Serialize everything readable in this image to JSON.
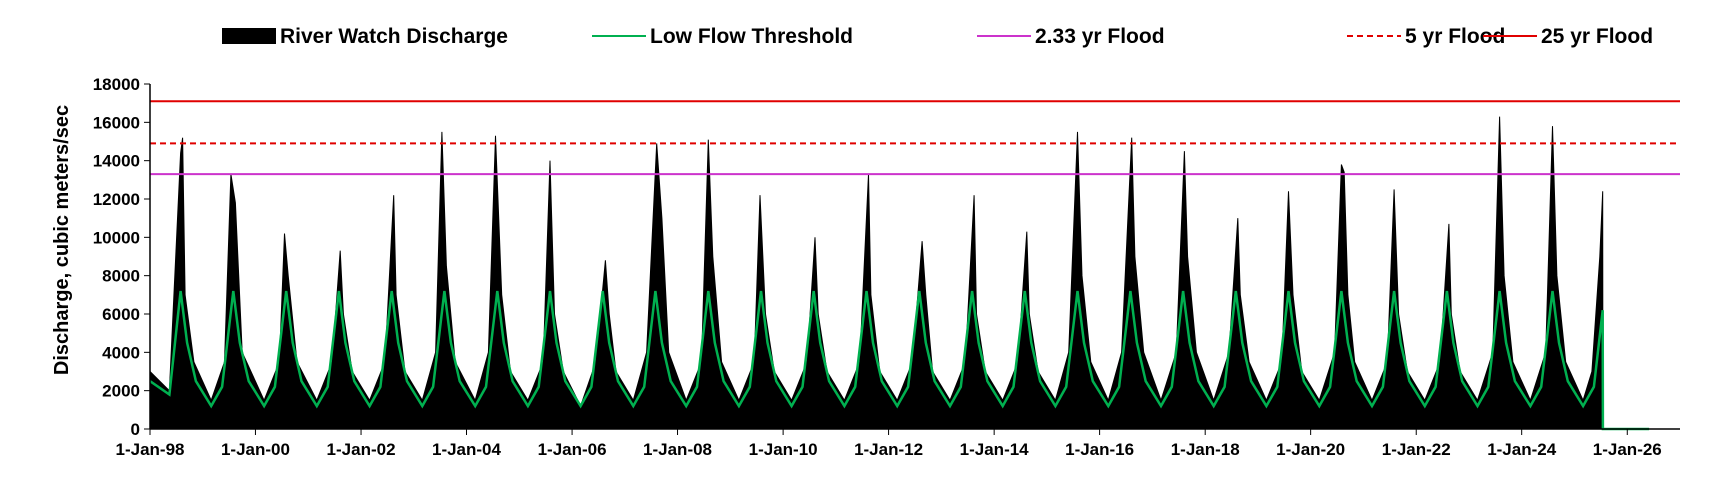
{
  "chart_data": {
    "type": "area",
    "title": "",
    "xlabel": "",
    "ylabel": "Discharge, cubic meters/sec",
    "ylim": [
      0,
      18000
    ],
    "yticks": [
      0,
      2000,
      4000,
      6000,
      8000,
      10000,
      12000,
      14000,
      16000,
      18000
    ],
    "ytick_labels": [
      "0",
      "2000",
      "4000",
      "6000",
      "8000",
      "10000",
      "12000",
      "14000",
      "16000",
      "18000"
    ],
    "xlim": [
      "1998-01-01",
      "2027-01-01"
    ],
    "xtick_labels": [
      "1-Jan-98",
      "1-Jan-00",
      "1-Jan-02",
      "1-Jan-04",
      "1-Jan-06",
      "1-Jan-08",
      "1-Jan-10",
      "1-Jan-12",
      "1-Jan-14",
      "1-Jan-16",
      "1-Jan-18",
      "1-Jan-20",
      "1-Jan-22",
      "1-Jan-24",
      "1-Jan-26"
    ],
    "xtick_dates": [
      "1998-01-01",
      "2000-01-01",
      "2002-01-01",
      "2004-01-01",
      "2006-01-01",
      "2008-01-01",
      "2010-01-01",
      "2012-01-01",
      "2014-01-01",
      "2016-01-01",
      "2018-01-01",
      "2020-01-01",
      "2022-01-01",
      "2024-01-01",
      "2026-01-01"
    ],
    "legend_position": "top",
    "grid": false,
    "series": [
      {
        "name": "River Watch Discharge",
        "style": "filled-area",
        "color": "#000000",
        "x": [
          "1998-01-01",
          "1998-05-15",
          "1998-08-01",
          "1998-08-15",
          "1998-09-01",
          "1998-11-01",
          "1999-03-01",
          "1999-06-01",
          "1999-07-15",
          "1999-08-15",
          "1999-10-01",
          "2000-03-01",
          "2000-06-15",
          "2000-07-20",
          "2000-08-15",
          "2000-10-15",
          "2001-03-01",
          "2001-06-15",
          "2001-08-10",
          "2001-09-01",
          "2001-11-01",
          "2002-03-01",
          "2002-06-15",
          "2002-08-15",
          "2002-09-01",
          "2002-11-01",
          "2003-03-01",
          "2003-06-01",
          "2003-07-15",
          "2003-08-15",
          "2003-10-15",
          "2004-03-01",
          "2004-06-01",
          "2004-07-20",
          "2004-09-01",
          "2004-11-01",
          "2005-03-01",
          "2005-06-15",
          "2005-08-01",
          "2005-09-01",
          "2005-11-01",
          "2006-03-01",
          "2006-06-15",
          "2006-08-20",
          "2006-09-15",
          "2006-11-01",
          "2007-03-01",
          "2007-06-01",
          "2007-08-10",
          "2007-09-15",
          "2007-11-01",
          "2008-03-01",
          "2008-06-15",
          "2008-08-01",
          "2008-09-01",
          "2008-11-01",
          "2009-03-01",
          "2009-06-15",
          "2009-07-25",
          "2009-09-01",
          "2009-11-01",
          "2010-03-01",
          "2010-06-15",
          "2010-08-10",
          "2010-09-01",
          "2010-11-01",
          "2011-03-01",
          "2011-06-15",
          "2011-08-15",
          "2011-09-01",
          "2011-11-01",
          "2012-03-01",
          "2012-06-15",
          "2012-08-20",
          "2012-09-15",
          "2012-11-01",
          "2013-03-01",
          "2013-06-15",
          "2013-08-15",
          "2013-09-01",
          "2013-11-01",
          "2014-03-01",
          "2014-06-15",
          "2014-08-15",
          "2014-09-01",
          "2014-11-01",
          "2015-03-01",
          "2015-06-01",
          "2015-08-01",
          "2015-09-01",
          "2015-11-01",
          "2016-03-01",
          "2016-06-01",
          "2016-08-10",
          "2016-09-01",
          "2016-11-01",
          "2017-03-01",
          "2017-06-15",
          "2017-08-10",
          "2017-09-01",
          "2017-11-01",
          "2018-03-01",
          "2018-06-15",
          "2018-08-15",
          "2018-09-01",
          "2018-11-01",
          "2019-03-01",
          "2019-06-15",
          "2019-08-01",
          "2019-09-01",
          "2019-11-01",
          "2020-03-01",
          "2020-06-15",
          "2020-08-01",
          "2020-08-20",
          "2020-09-15",
          "2020-11-01",
          "2021-03-01",
          "2021-06-15",
          "2021-08-01",
          "2021-09-01",
          "2021-11-01",
          "2022-03-01",
          "2022-06-15",
          "2022-08-15",
          "2022-09-01",
          "2022-11-01",
          "2023-03-01",
          "2023-06-15",
          "2023-08-01",
          "2023-09-01",
          "2023-11-01",
          "2024-03-01",
          "2024-06-15",
          "2024-08-01",
          "2024-09-01",
          "2024-11-01",
          "2025-03-01",
          "2025-05-01",
          "2025-06-25",
          "2025-07-15",
          "2025-07-16",
          "2026-06-01"
        ],
        "values": [
          3000,
          2000,
          14400,
          15200,
          7000,
          3500,
          1500,
          3500,
          13300,
          11800,
          4000,
          1500,
          3500,
          10200,
          8000,
          3500,
          1500,
          3500,
          9300,
          6000,
          3000,
          1500,
          3500,
          12200,
          7000,
          3000,
          1500,
          4000,
          15500,
          8500,
          3500,
          1500,
          4000,
          15300,
          7000,
          3000,
          1500,
          3500,
          14000,
          6000,
          3000,
          1200,
          3500,
          8800,
          6000,
          3000,
          1500,
          4000,
          14900,
          11000,
          4000,
          1500,
          3500,
          15100,
          9000,
          3500,
          1500,
          3500,
          12200,
          6000,
          3000,
          1500,
          3500,
          10000,
          6000,
          3000,
          1500,
          3500,
          13300,
          7000,
          3000,
          1500,
          3500,
          9800,
          7000,
          3000,
          1500,
          3500,
          12200,
          6000,
          3000,
          1500,
          3500,
          10300,
          6000,
          3000,
          1500,
          4000,
          15500,
          8000,
          3500,
          1500,
          4000,
          15200,
          9000,
          4000,
          1500,
          4000,
          14500,
          9000,
          4000,
          1500,
          4000,
          11000,
          7000,
          3500,
          1500,
          3500,
          12400,
          7000,
          3000,
          1500,
          4000,
          13800,
          13400,
          7000,
          3500,
          1500,
          3500,
          12500,
          6000,
          3000,
          1500,
          3500,
          10700,
          6000,
          3000,
          1500,
          4000,
          16300,
          8000,
          3500,
          1500,
          4000,
          15800,
          8000,
          3500,
          1500,
          3000,
          9000,
          12400,
          0,
          0
        ]
      },
      {
        "name": "Low Flow Threshold",
        "style": "line",
        "color": "#00b050",
        "x": [
          "1998-01-01",
          "1998-05-15",
          "1998-08-01",
          "1998-09-15",
          "1998-11-15",
          "1999-03-01",
          "1999-05-15",
          "1999-08-01",
          "1999-09-15",
          "1999-11-15",
          "2000-03-01",
          "2000-05-15",
          "2000-08-01",
          "2000-09-15",
          "2000-11-15",
          "2001-03-01",
          "2001-05-15",
          "2001-08-01",
          "2001-09-15",
          "2001-11-15",
          "2002-03-01",
          "2002-05-15",
          "2002-08-01",
          "2002-09-15",
          "2002-11-15",
          "2003-03-01",
          "2003-05-15",
          "2003-08-01",
          "2003-09-15",
          "2003-11-15",
          "2004-03-01",
          "2004-05-15",
          "2004-08-01",
          "2004-09-15",
          "2004-11-15",
          "2005-03-01",
          "2005-05-15",
          "2005-08-01",
          "2005-09-15",
          "2005-11-15",
          "2006-03-01",
          "2006-05-15",
          "2006-08-01",
          "2006-09-15",
          "2006-11-15",
          "2007-03-01",
          "2007-05-15",
          "2007-08-01",
          "2007-09-15",
          "2007-11-15",
          "2008-03-01",
          "2008-05-15",
          "2008-08-01",
          "2008-09-15",
          "2008-11-15",
          "2009-03-01",
          "2009-05-15",
          "2009-08-01",
          "2009-09-15",
          "2009-11-15",
          "2010-03-01",
          "2010-05-15",
          "2010-08-01",
          "2010-09-15",
          "2010-11-15",
          "2011-03-01",
          "2011-05-15",
          "2011-08-01",
          "2011-09-15",
          "2011-11-15",
          "2012-03-01",
          "2012-05-15",
          "2012-08-01",
          "2012-09-15",
          "2012-11-15",
          "2013-03-01",
          "2013-05-15",
          "2013-08-01",
          "2013-09-15",
          "2013-11-15",
          "2014-03-01",
          "2014-05-15",
          "2014-08-01",
          "2014-09-15",
          "2014-11-15",
          "2015-03-01",
          "2015-05-15",
          "2015-08-01",
          "2015-09-15",
          "2015-11-15",
          "2016-03-01",
          "2016-05-15",
          "2016-08-01",
          "2016-09-15",
          "2016-11-15",
          "2017-03-01",
          "2017-05-15",
          "2017-08-01",
          "2017-09-15",
          "2017-11-15",
          "2018-03-01",
          "2018-05-15",
          "2018-08-01",
          "2018-09-15",
          "2018-11-15",
          "2019-03-01",
          "2019-05-15",
          "2019-08-01",
          "2019-09-15",
          "2019-11-15",
          "2020-03-01",
          "2020-05-15",
          "2020-08-01",
          "2020-09-15",
          "2020-11-15",
          "2021-03-01",
          "2021-05-15",
          "2021-08-01",
          "2021-09-15",
          "2021-11-15",
          "2022-03-01",
          "2022-05-15",
          "2022-08-01",
          "2022-09-15",
          "2022-11-15",
          "2023-03-01",
          "2023-05-15",
          "2023-08-01",
          "2023-09-15",
          "2023-11-15",
          "2024-03-01",
          "2024-05-15",
          "2024-08-01",
          "2024-09-15",
          "2024-11-15",
          "2025-03-01",
          "2025-05-15",
          "2025-07-15",
          "2025-07-16",
          "2026-06-01"
        ],
        "values": [
          2500,
          1800,
          7200,
          4500,
          2500,
          1200,
          2200,
          7200,
          4500,
          2500,
          1200,
          2200,
          7200,
          4500,
          2500,
          1200,
          2200,
          7200,
          4500,
          2500,
          1200,
          2200,
          7200,
          4500,
          2500,
          1200,
          2200,
          7200,
          4500,
          2500,
          1200,
          2200,
          7200,
          4500,
          2500,
          1200,
          2200,
          7200,
          4500,
          2500,
          1200,
          2200,
          7200,
          4500,
          2500,
          1200,
          2200,
          7200,
          4500,
          2500,
          1200,
          2200,
          7200,
          4500,
          2500,
          1200,
          2200,
          7200,
          4500,
          2500,
          1200,
          2200,
          7200,
          4500,
          2500,
          1200,
          2200,
          7200,
          4500,
          2500,
          1200,
          2200,
          7200,
          4500,
          2500,
          1200,
          2200,
          7200,
          4500,
          2500,
          1200,
          2200,
          7200,
          4500,
          2500,
          1200,
          2200,
          7200,
          4500,
          2500,
          1200,
          2200,
          7200,
          4500,
          2500,
          1200,
          2200,
          7200,
          4500,
          2500,
          1200,
          2200,
          7200,
          4500,
          2500,
          1200,
          2200,
          7200,
          4500,
          2500,
          1200,
          2200,
          7200,
          4500,
          2500,
          1200,
          2200,
          7200,
          4500,
          2500,
          1200,
          2200,
          7200,
          4500,
          2500,
          1200,
          2200,
          7200,
          4500,
          2500,
          1200,
          2200,
          7200,
          4500,
          2500,
          1200,
          2200,
          6200,
          0,
          0
        ]
      },
      {
        "name": "2.33 yr Flood",
        "style": "line",
        "color": "#cc33cc",
        "constant": 13300
      },
      {
        "name": "5 yr Flood",
        "style": "dashed-line",
        "color": "#e00000",
        "constant": 14900
      },
      {
        "name": "25 yr Flood",
        "style": "line",
        "color": "#e00000",
        "constant": 17100
      }
    ]
  }
}
